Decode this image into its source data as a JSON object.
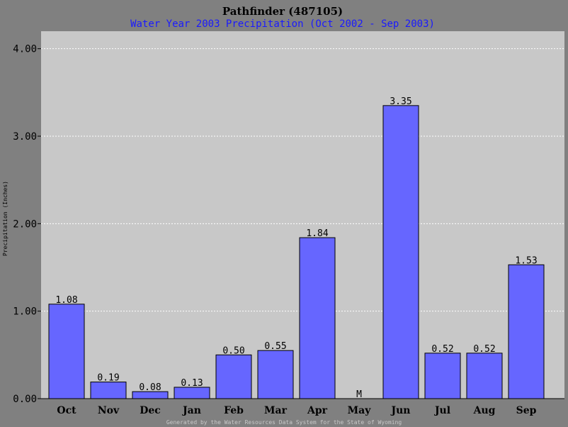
{
  "chart_data": {
    "type": "bar",
    "title": "Pathfinder (487105)",
    "subtitle": "Water Year 2003 Precipitation (Oct 2002 - Sep 2003)",
    "ylabel": "Precipitation (Inches)",
    "xlabel": "",
    "ylim": [
      0,
      4.2
    ],
    "yticks": [
      "0.00",
      "1.00",
      "2.00",
      "3.00",
      "4.00"
    ],
    "grid": true,
    "categories": [
      "Oct",
      "Nov",
      "Dec",
      "Jan",
      "Feb",
      "Mar",
      "Apr",
      "May",
      "Jun",
      "Jul",
      "Aug",
      "Sep"
    ],
    "values": [
      1.08,
      0.19,
      0.08,
      0.13,
      0.5,
      0.55,
      1.84,
      null,
      3.35,
      0.52,
      0.52,
      1.53
    ],
    "value_labels": [
      "1.08",
      "0.19",
      "0.08",
      "0.13",
      "0.50",
      "0.55",
      "1.84",
      "M",
      "3.35",
      "0.52",
      "0.52",
      "1.53"
    ],
    "missing_label": "M",
    "footer": "Generated by the Water Resources Data System for the State of Wyoming",
    "colors": {
      "bar": "#6666ff",
      "missing": "#cc0000",
      "plot_bg": "#c8c8c8",
      "page_bg": "#808080",
      "grid": "#ffffff"
    }
  }
}
